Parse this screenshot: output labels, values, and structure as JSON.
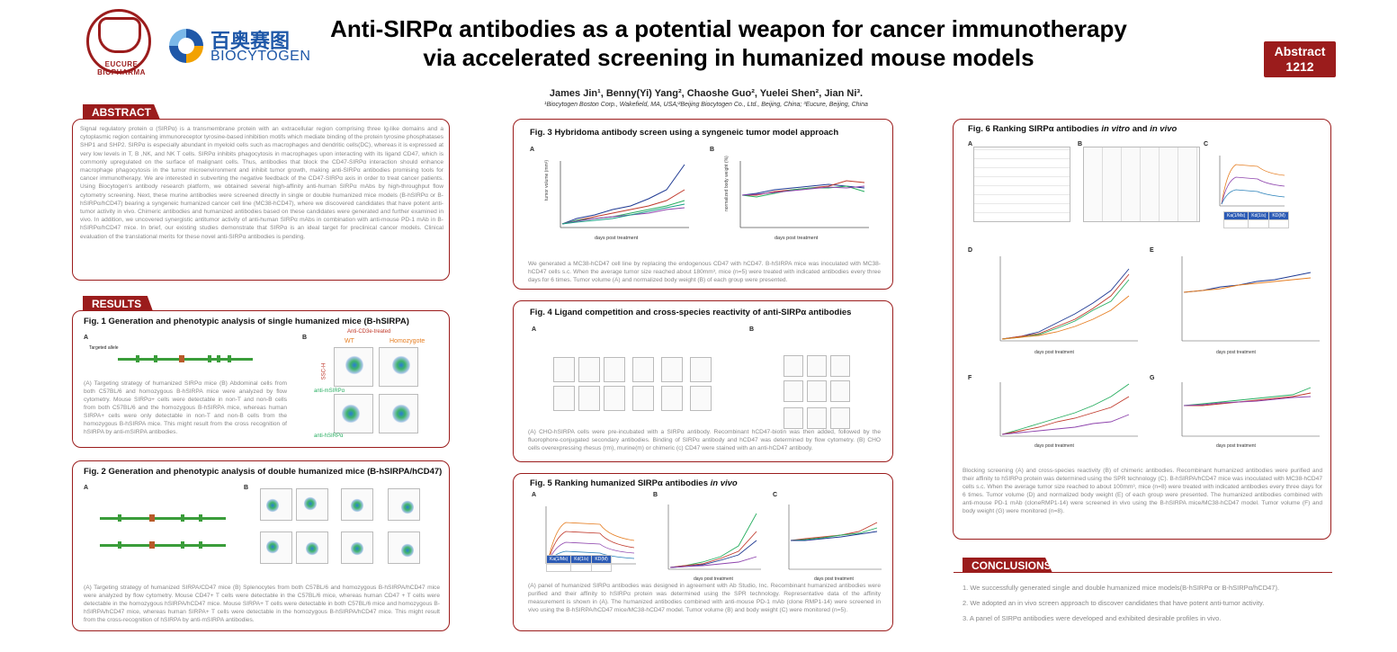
{
  "header": {
    "title_line1": "Anti-SIRPα antibodies as a potential weapon for cancer immunotherapy",
    "title_line2": "via accelerated screening in humanized mouse models",
    "abstract_badge_line1": "Abstract",
    "abstract_badge_line2": "1212",
    "authors": "James Jin¹, Benny(Yi) Yang², Chaoshe Guo², Yuelei Shen², Jian Ni³.",
    "affiliations": "¹Biocytogen Boston Corp., Wakefield, MA, USA;²Beijing Biocytogen Co., Ltd., Beijing, China; ³Eucure, Beijing, China",
    "logo_left_text": "EUCURE BIOPHARMA",
    "logo_right_cn": "百奥赛图",
    "logo_right_en": "BIOCYTOGEN"
  },
  "abstract": {
    "heading": "ABSTRACT",
    "text": "Signal regulatory protein α (SIRPα) is a transmembrane protein with an extracellular region comprising three Ig-like domains and a cytoplasmic region containing immunoreceptor tyrosine-based inhibition motifs which mediate binding of the protein tyrosine phosphatases SHP1 and SHP2. SIRPα is especially abundant in myeloid cells such as macrophages and dendritic cells(DC), whereas it is expressed at very low levels in T, B ,NK, and NK T cells. SIRPα inhibits phagocytosis in macrophages upon interacting with its ligand CD47, which is commonly upregulated on the surface of malignant cells. Thus, antibodies that block the CD47-SIRPα interaction should enhance macrophage phagocytosis in the tumor microenvironment and inhibit tumor growth, making anti-SIRPα antibodies promising tools for cancer immunotherapy. We are interested in subverting the negative feedback of the CD47-SIRPα axis in order to treat cancer patients. Using Biocytogen’s antibody research platform, we obtained several high-affinity anti-human SIRPα mAbs by high-throughput flow cytometry screening. Next, these murine antibodies were screened directly in single or double humanized mice models (B-hSIRPα or B-hSIRPα/hCD47) bearing a syngeneic humanized cancer cell line (MC38-hCD47), where we discovered candidates that have potent anti-tumor activity in vivo. Chimeric antibodies and humanized antibodies based on these candidates were generated and further examined in vivo. In addition, we uncovered synergistic antitumor activity of anti-human SIRPα mAbs in combination with anti-mouse PD-1 mAb in B-hSIRPα/hCD47 mice. In brief, our existing studies demonstrate that SIRPα is an ideal target for preclinical cancer models. Clinical evaluation of the translational merits for these novel anti-SIRPα antibodies is pending."
  },
  "results": {
    "heading": "RESULTS",
    "fig1": {
      "title": "Fig. 1 Generation and phenotypic analysis of single humanized mice (B-hSIRPA)",
      "panel_a": "A",
      "panel_b": "B",
      "targeting_label": "Targeted allele",
      "anti_cd3e": "Anti-CD3e-treated",
      "wt": "WT",
      "homozygote": "Homozygote",
      "ssc_h": "SSC-H",
      "x_label_mouse": "anti-mSIRPα",
      "x_label_human": "anti-hSIRPα",
      "caption": "(A) Targeting strategy of humanized SIRPα mice (B) Abdominal cells from both C57BL/6 and homozygous B-hSIRPA mice were analyzed by flow cytometry. Mouse SIRPα+ cells were detectable in non-T and non-B cells from both C57BL/6 and the homozygous B-hSIRPA mice, whereas human SIRPA+ cells were only detectable in non-T and non-B cells from the homozygous B-hSIRPA mice. This might result from the cross recognition of hSIRPA by anti-mSIRPA antibodies."
    },
    "fig2": {
      "title": "Fig. 2 Generation and phenotypic analysis of double humanized mice (B-hSIRPA/hCD47)",
      "panel_a": "A",
      "panel_b": "B",
      "caption": "(A) Targeting strategy of humanized SIRPA/CD47 mice (B) Splenocytes from both C57BL/6 and homozygous B-hSIRPA/hCD47 mice were analyzed by flow cytometry. Mouse CD47+ T cells were detectable in the C57BL/6 mice, whereas human CD47 + T cells were detectable in the homozygous hSIRPA/hCD47 mice. Mouse SIRPA+ T cells were detectable in both C57BL/6 mice and homozygous B-hSIRPA/hCD47 mice, whereas human SIRPA+ T cells were detectable in the homozygous B-hSIRPA/hCD47 mice. This might result from the cross-recognition of hSIRPA by anti-mSIRPA antibodies."
    },
    "fig3": {
      "title": "Fig. 3 Hybridoma antibody screen using a syngeneic tumor model approach",
      "panel_a": "A",
      "panel_b": "B",
      "xlabel": "days post treatment",
      "ylabel_a": "tumor volume (mm³)",
      "ylabel_b": "normalized body weight (%)",
      "caption": "We generated a MC38-hCD47 cell line by replacing the endogenous CD47 with hCD47. B-hSIRPA mice was inoculated with MC38-hCD47 cells s.c. When the average tumor size reached about 180mm³, mice (n=5) were treated with indicated antibodies every three days for 6 times. Tumor volume (A) and normalized body weight (B) of each group were presented."
    },
    "fig4": {
      "title": "Fig. 4 Ligand competition and cross-species reactivity of anti-SIRPα antibodies",
      "panel_a": "A",
      "panel_b": "B",
      "caption": "(A) CHO-hSIRPA cells were pre-incubated with a SIRPα antibody. Recombinant hCD47-biotin was then added, followed by the fluorophore-conjugated secondary antibodies. Binding of SIRPα antibody and hCD47 was determined by flow cytometry. (B) CHO cells overexpressing rhesus (rm), murine(m) or chimeric (c) CD47 were stained with an anti-hCD47 antibody."
    },
    "fig5": {
      "title": "Fig. 5 Ranking humanized SIRPα antibodies",
      "title_italic": "in vivo",
      "panel_a": "A",
      "panel_b": "B",
      "panel_c": "C",
      "xlabel_b": "days post treatment",
      "xlabel_c": "days post treatment",
      "caption": "(A) panel of humanized SIRPα antibodies was designed in agreement with Ab Studio, Inc. Recombinant humanized antibodies were purified and their affinity to hSIRPα protein was determined using the SPR technology. Representative data of the affinity measurement is shown in (A). The humanized antibodies combined with anti-mouse PD-1 mAb (clone RMP1-14) were screened in vivo using the B-hSIRPA/hCD47 mice/MC38-hCD47 model. Tumor volume (B) and body weight (C) were monitored (n=5)."
    },
    "fig6": {
      "title": "Fig. 6 Ranking SIRPα antibodies",
      "title_italic_1": "in vitro",
      "title_and": "and",
      "title_italic_2": "in vivo",
      "panels": [
        "A",
        "B",
        "C",
        "D",
        "E",
        "F",
        "G"
      ],
      "kd_headers": [
        "Ka(1/Ms)",
        "Kd(1/s)",
        "KD(M)"
      ],
      "xlabel": "days post treatment",
      "caption": "Blocking screening (A) and cross-species reactivity (B) of chimeric antibodies. Recombinant humanized antibodies were purified and their affinity to hSIRPα protein was determined using the SPR technology (C). B-hSIRPA/hCD47 mice was inoculated with MC38-hCD47 cells s.c. When the average tumor size reached to about 100mm³, mice (n=8) were treated with indicated antibodies every three days for 6 times. Tumor volume (D) and normalized body weight (E) of each group were presented. The humanized antibodies combined with anti-mouse PD-1 mAb (cloneRMP1-14) were screened in vivo using the B-hSIRPA mice/MC38-hCD47 model. Tumor volume (F) and body weight (G) were monitored (n=8)."
    }
  },
  "conclusions": {
    "heading": "CONCLUSIONS",
    "items": [
      "1. We successfully generated single and double humanized mice models(B-hSIRPα or B-hSIRPα/hCD47).",
      "2. We adopted an in vivo screen approach to discover candidates that have potent anti-tumor activity.",
      "3. A panel of SIRPα antibodies were developed and exhibited desirable profiles in vivo."
    ]
  },
  "colors": {
    "accent": "#9b1c1c",
    "brand_blue": "#1f58a8",
    "series": [
      "#1f3a93",
      "#c0392b",
      "#27ae60",
      "#8e44ad",
      "#16a085",
      "#e67e22"
    ]
  }
}
